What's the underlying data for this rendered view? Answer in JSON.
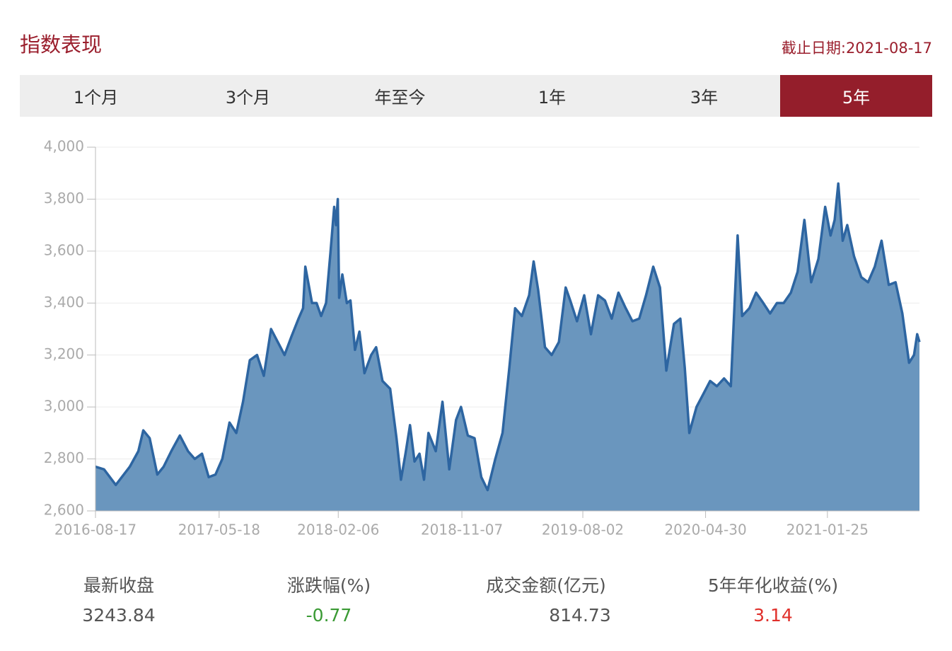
{
  "header": {
    "title": "指数表现",
    "as_of": "截止日期:2021-08-17"
  },
  "tabs": [
    "1个月",
    "3个月",
    "年至今",
    "1年",
    "3年",
    "5年"
  ],
  "chart_data": {
    "type": "area",
    "x": [
      "2016-08-17",
      "2016-09-05",
      "2016-10-01",
      "2016-11-01",
      "2016-11-20",
      "2016-12-01",
      "2016-12-15",
      "2017-01-01",
      "2017-01-15",
      "2017-02-01",
      "2017-02-20",
      "2017-03-10",
      "2017-03-25",
      "2017-04-10",
      "2017-04-25",
      "2017-05-10",
      "2017-05-25",
      "2017-06-10",
      "2017-06-25",
      "2017-07-10",
      "2017-07-25",
      "2017-08-10",
      "2017-08-25",
      "2017-09-10",
      "2017-09-25",
      "2017-10-10",
      "2017-10-25",
      "2017-11-10",
      "2017-11-20",
      "2017-11-25",
      "2017-12-10",
      "2017-12-20",
      "2017-12-30",
      "2018-01-10",
      "2018-01-20",
      "2018-01-28",
      "2018-02-01",
      "2018-02-05",
      "2018-02-08",
      "2018-02-15",
      "2018-02-25",
      "2018-03-05",
      "2018-03-15",
      "2018-03-25",
      "2018-04-05",
      "2018-04-20",
      "2018-05-01",
      "2018-05-15",
      "2018-06-01",
      "2018-06-15",
      "2018-06-25",
      "2018-07-05",
      "2018-07-15",
      "2018-07-25",
      "2018-08-05",
      "2018-08-15",
      "2018-08-25",
      "2018-09-10",
      "2018-09-25",
      "2018-10-10",
      "2018-10-25",
      "2018-11-05",
      "2018-11-20",
      "2018-12-05",
      "2018-12-20",
      "2019-01-03",
      "2019-01-20",
      "2019-02-05",
      "2019-02-20",
      "2019-03-05",
      "2019-03-20",
      "2019-04-05",
      "2019-04-15",
      "2019-04-25",
      "2019-05-10",
      "2019-05-25",
      "2019-06-10",
      "2019-06-25",
      "2019-07-05",
      "2019-07-20",
      "2019-08-05",
      "2019-08-20",
      "2019-09-05",
      "2019-09-20",
      "2019-10-05",
      "2019-10-20",
      "2019-11-05",
      "2019-11-20",
      "2019-12-05",
      "2019-12-20",
      "2020-01-05",
      "2020-01-20",
      "2020-02-03",
      "2020-02-20",
      "2020-03-05",
      "2020-03-15",
      "2020-03-25",
      "2020-04-10",
      "2020-04-25",
      "2020-05-10",
      "2020-05-25",
      "2020-06-10",
      "2020-06-25",
      "2020-07-06",
      "2020-07-10",
      "2020-07-20",
      "2020-08-05",
      "2020-08-20",
      "2020-09-05",
      "2020-09-20",
      "2020-10-05",
      "2020-10-20",
      "2020-11-05",
      "2020-11-20",
      "2020-12-05",
      "2020-12-20",
      "2021-01-05",
      "2021-01-20",
      "2021-02-01",
      "2021-02-10",
      "2021-02-18",
      "2021-02-28",
      "2021-03-10",
      "2021-03-25",
      "2021-04-10",
      "2021-04-25",
      "2021-05-10",
      "2021-05-25",
      "2021-06-10",
      "2021-06-25",
      "2021-07-10",
      "2021-07-25",
      "2021-08-05",
      "2021-08-12",
      "2021-08-17"
    ],
    "values": [
      2770,
      2760,
      2700,
      2770,
      2830,
      2910,
      2880,
      2740,
      2770,
      2830,
      2890,
      2830,
      2800,
      2820,
      2730,
      2740,
      2800,
      2940,
      2900,
      3020,
      3180,
      3200,
      3120,
      3300,
      3250,
      3200,
      3270,
      3340,
      3380,
      3540,
      3400,
      3400,
      3350,
      3400,
      3600,
      3770,
      3700,
      3800,
      3420,
      3510,
      3400,
      3410,
      3220,
      3290,
      3130,
      3200,
      3230,
      3100,
      3070,
      2880,
      2720,
      2820,
      2930,
      2790,
      2820,
      2720,
      2900,
      2830,
      3020,
      2760,
      2950,
      3000,
      2890,
      2880,
      2730,
      2680,
      2800,
      2900,
      3150,
      3380,
      3350,
      3430,
      3560,
      3450,
      3230,
      3200,
      3250,
      3460,
      3410,
      3330,
      3430,
      3280,
      3430,
      3410,
      3340,
      3440,
      3380,
      3330,
      3340,
      3430,
      3540,
      3460,
      3140,
      3320,
      3340,
      3150,
      2900,
      3000,
      3050,
      3100,
      3080,
      3110,
      3080,
      3500,
      3660,
      3350,
      3380,
      3440,
      3400,
      3360,
      3400,
      3400,
      3440,
      3520,
      3720,
      3480,
      3570,
      3770,
      3660,
      3720,
      3860,
      3640,
      3700,
      3580,
      3500,
      3480,
      3540,
      3640,
      3470,
      3480,
      3360,
      3170,
      3200,
      3280,
      3250
    ],
    "xlim": [
      "2016-08-17",
      "2021-08-17"
    ],
    "xticks": [
      "2016-08-17",
      "2017-05-18",
      "2018-02-06",
      "2018-11-07",
      "2019-08-02",
      "2020-04-30",
      "2021-01-25"
    ],
    "ylim": [
      2600,
      4000
    ],
    "yticks": [
      {
        "value": 2600,
        "label": "2,600"
      },
      {
        "value": 2800,
        "label": "2,800"
      },
      {
        "value": 3000,
        "label": "3,000"
      },
      {
        "value": 3200,
        "label": "3,200"
      },
      {
        "value": 3400,
        "label": "3,400"
      },
      {
        "value": 3600,
        "label": "3,600"
      },
      {
        "value": 3800,
        "label": "3,800"
      },
      {
        "value": 4000,
        "label": "4,000"
      }
    ],
    "grid": true,
    "color": "#2d65a1"
  },
  "stats": [
    {
      "label": "最新收盘",
      "value": 3243.84
    },
    {
      "label": "涨跌幅(%)",
      "value": -0.77
    },
    {
      "label": "成交金额(亿元)",
      "value": 814.73
    },
    {
      "label": "5年年化收益(%)",
      "value": 3.14
    }
  ]
}
